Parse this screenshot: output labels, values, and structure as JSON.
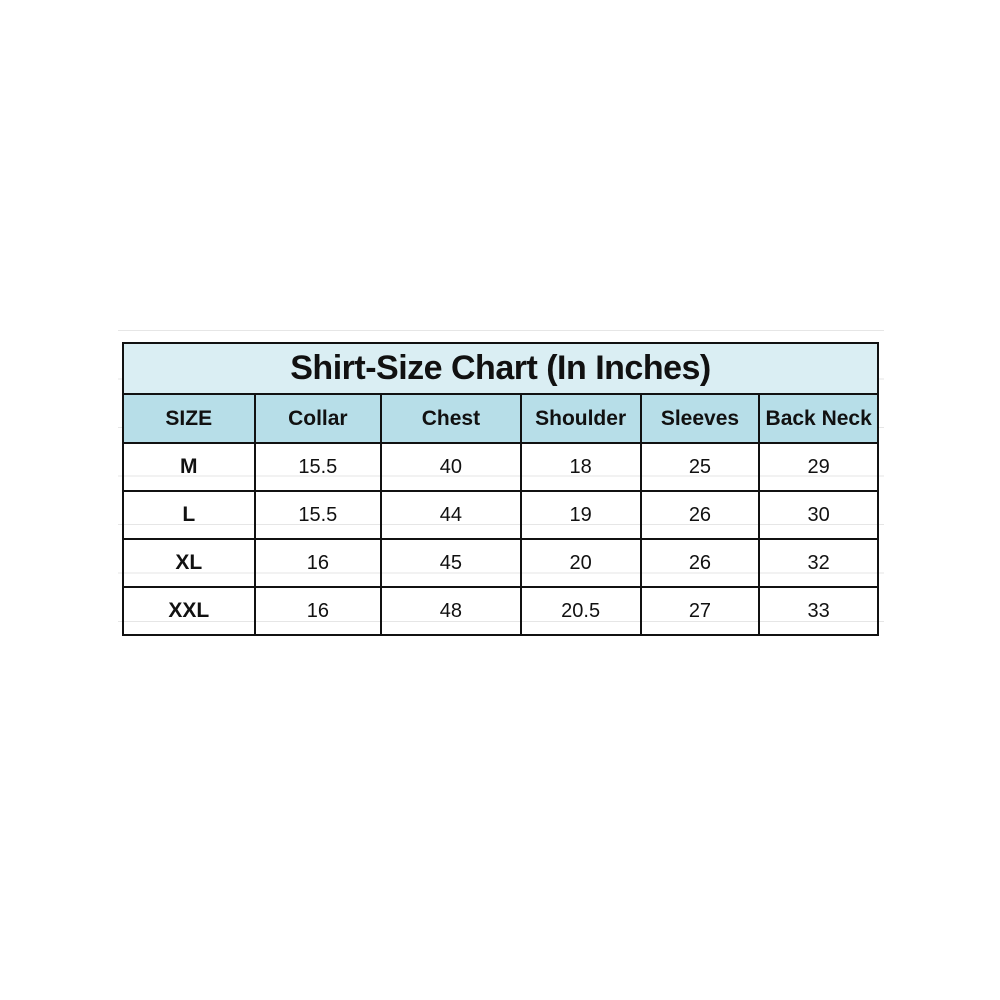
{
  "title": "Shirt-Size Chart (In Inches)",
  "headers": [
    "SIZE",
    "Collar",
    "Chest",
    "Shoulder",
    "Sleeves",
    "Back Neck"
  ],
  "rows": [
    [
      "M",
      "15.5",
      "40",
      "18",
      "25",
      "29"
    ],
    [
      "L",
      "15.5",
      "44",
      "19",
      "26",
      "30"
    ],
    [
      "XL",
      "16",
      "45",
      "20",
      "26",
      "32"
    ],
    [
      "XXL",
      "16",
      "48",
      "20.5",
      "27",
      "33"
    ]
  ],
  "colors": {
    "title_bg": "#daeef3",
    "header_bg": "#b7dee8",
    "border": "#111111"
  }
}
